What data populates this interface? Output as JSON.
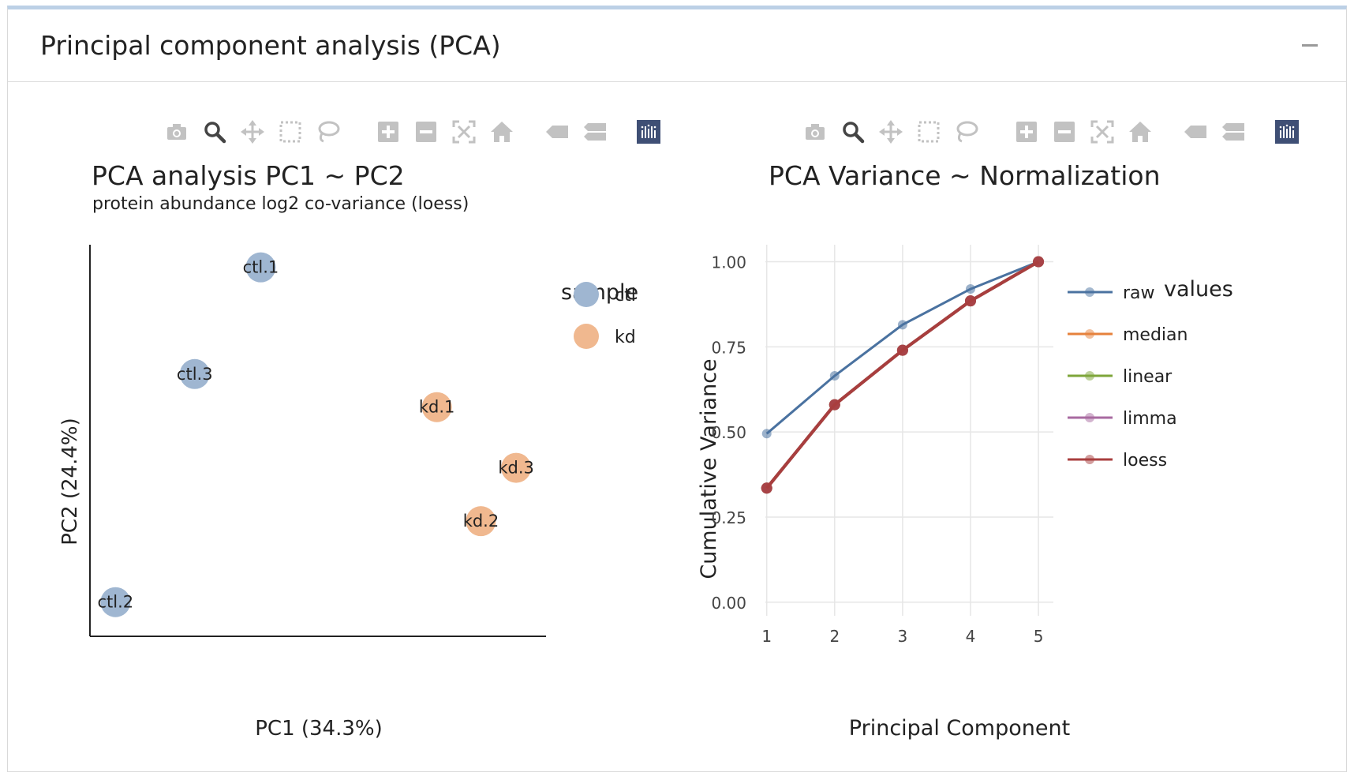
{
  "panel": {
    "title": "Principal component analysis (PCA)",
    "collapse_icon": "minus-icon"
  },
  "modebar": {
    "icons": [
      "camera-icon",
      "zoom-icon",
      "pan-icon",
      "box-select-icon",
      "lasso-icon",
      "zoom-in-icon",
      "zoom-out-icon",
      "autoscale-icon",
      "reset-axes-icon",
      "hover-closest-icon",
      "hover-compare-icon",
      "plotly-logo-icon"
    ],
    "active_color": "#444444",
    "inactive_color": "#c2c2c2",
    "logo_color": "#3f4f75"
  },
  "colors": {
    "ctl": "#9fb6d1",
    "kd": "#f0b88f",
    "raw": "#4a72a0",
    "median": "#e6823c",
    "linear": "#7ea63a",
    "limma": "#a86aa0",
    "loess": "#a83e3e",
    "grid": "#e6e6e6",
    "axis": "#222222"
  },
  "chart_data": [
    {
      "type": "scatter",
      "title": "PCA analysis PC1 ~ PC2",
      "subtitle": "protein abundance log2 co-variance (loess)",
      "xlabel": "PC1 (34.3%)",
      "ylabel": "PC2 (24.4%)",
      "axis_ticks_shown": false,
      "grid": false,
      "legend": {
        "title": "sample",
        "placement": "top-right",
        "entries": [
          "ctl",
          "kd"
        ]
      },
      "xlim": [
        0,
        1
      ],
      "ylim": [
        0,
        1
      ],
      "points": [
        {
          "label": "ctl.1",
          "group": "ctl",
          "x": 0.37,
          "y": 0.96
        },
        {
          "label": "ctl.3",
          "group": "ctl",
          "x": 0.22,
          "y": 0.67
        },
        {
          "label": "kd.1",
          "group": "kd",
          "x": 0.77,
          "y": 0.58
        },
        {
          "label": "kd.3",
          "group": "kd",
          "x": 0.95,
          "y": 0.415
        },
        {
          "label": "kd.2",
          "group": "kd",
          "x": 0.87,
          "y": 0.27
        },
        {
          "label": "ctl.2",
          "group": "ctl",
          "x": 0.04,
          "y": 0.05
        }
      ]
    },
    {
      "type": "line",
      "title": "PCA Variance ~ Normalization",
      "xlabel": "Principal Component",
      "ylabel": "Cumulative Variance",
      "x": [
        1,
        2,
        3,
        4,
        5
      ],
      "xlim": [
        0.98,
        5.22
      ],
      "ylim": [
        -0.04,
        1.05
      ],
      "yticks": [
        "0.00",
        "0.25",
        "0.50",
        "0.75",
        "1.00"
      ],
      "xticks": [
        "1",
        "2",
        "3",
        "4",
        "5"
      ],
      "grid": true,
      "legend": {
        "title": "values",
        "placement": "right",
        "entries": [
          "raw",
          "median",
          "linear",
          "limma",
          "loess"
        ]
      },
      "series": [
        {
          "name": "raw",
          "values": [
            0.495,
            0.665,
            0.815,
            0.92,
            1.0
          ]
        },
        {
          "name": "median",
          "values": [
            0.335,
            0.58,
            0.74,
            0.885,
            1.0
          ]
        },
        {
          "name": "linear",
          "values": [
            0.335,
            0.58,
            0.74,
            0.885,
            1.0
          ]
        },
        {
          "name": "limma",
          "values": [
            0.335,
            0.58,
            0.74,
            0.885,
            1.0
          ]
        },
        {
          "name": "loess",
          "values": [
            0.335,
            0.58,
            0.74,
            0.885,
            1.0
          ]
        }
      ]
    }
  ]
}
